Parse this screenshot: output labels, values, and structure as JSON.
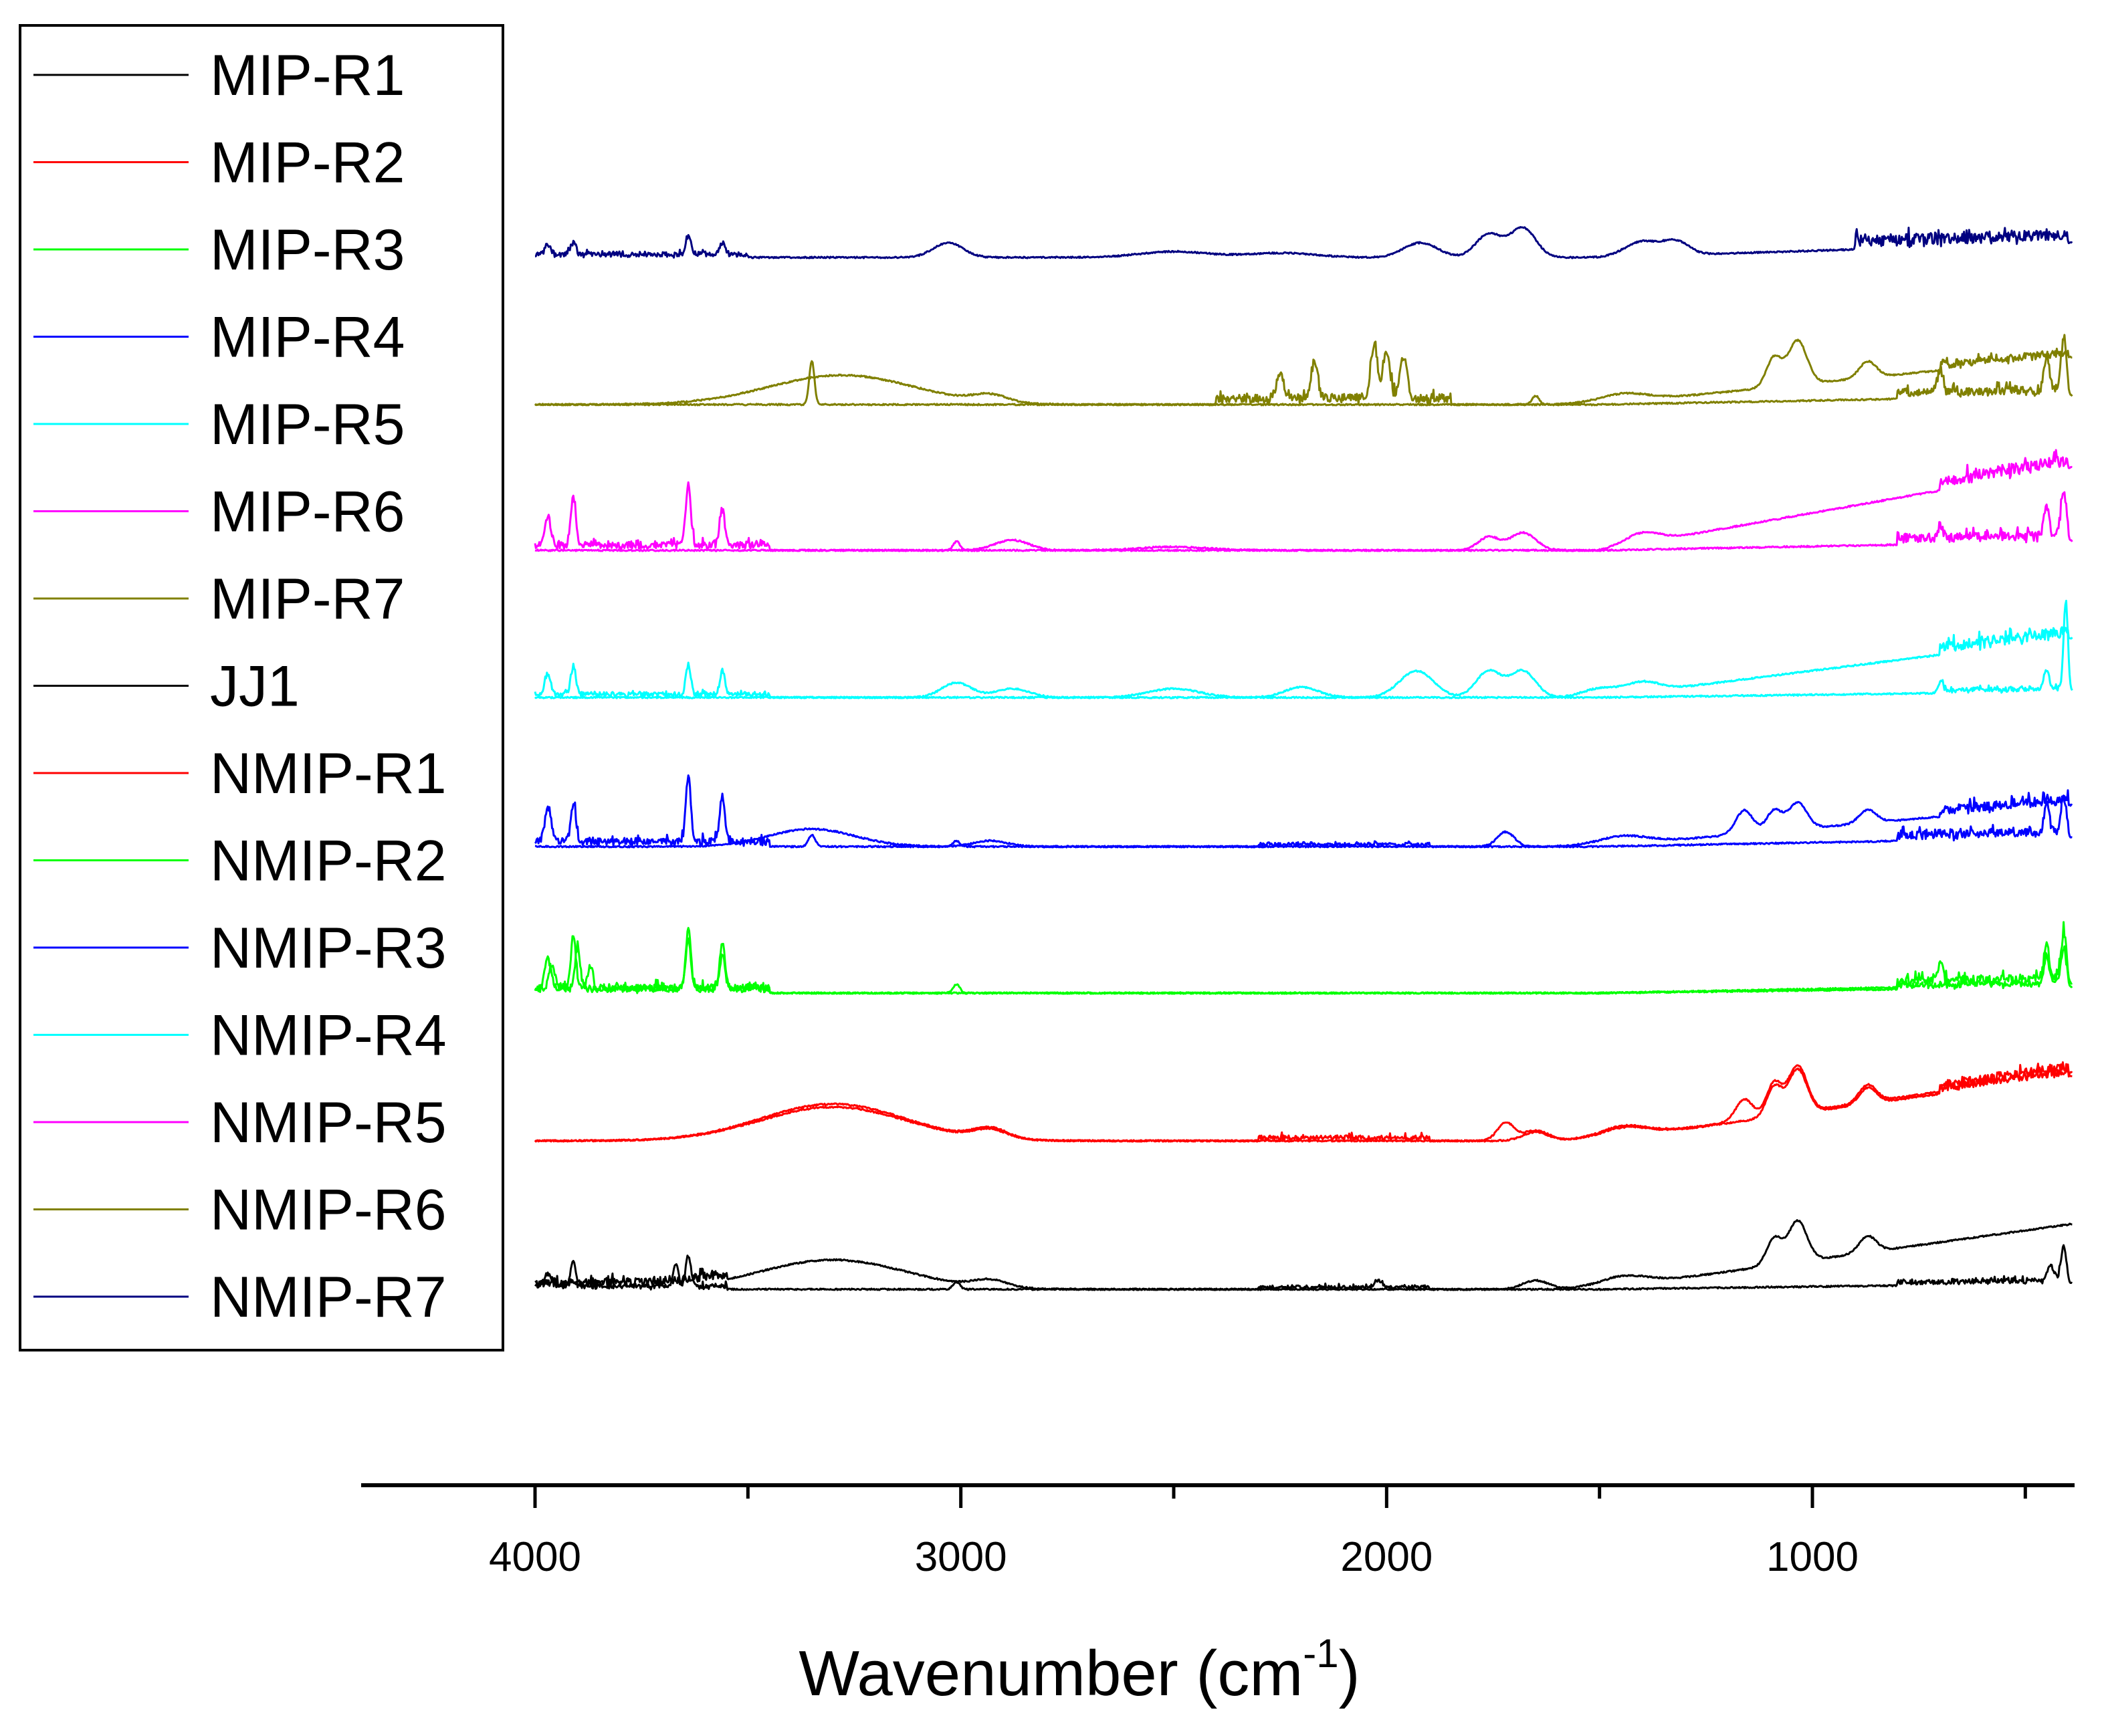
{
  "chart_data": {
    "type": "line",
    "title": "",
    "xlabel": "Wavenumber (cm",
    "xlabel_superscript": "-1",
    "xlabel_suffix": ")",
    "ylabel": "",
    "xlim": [
      4400,
      400
    ],
    "xaxis_reversed": true,
    "x_ticks": [
      4000,
      3000,
      2000,
      1000
    ],
    "x_minor_ticks": [
      3500,
      2500,
      1500,
      500
    ],
    "grid": false,
    "legend_position": "top-left",
    "y_axis_shown": false,
    "note": "FTIR spectra stacked with vertical offsets; curves digitized approximately, intensities in arbitrary units (offset baseline = stack order)",
    "series": [
      {
        "name": "MIP-R1",
        "color": "#000000",
        "stack": 0,
        "style": "lumpy",
        "peaks": [
          [
            3300,
            1.0,
            170
          ],
          [
            2930,
            0.25,
            40
          ],
          [
            1650,
            0.3,
            30
          ],
          [
            1450,
            0.35,
            60
          ],
          [
            1090,
            0.9,
            18
          ],
          [
            1035,
            1.4,
            22
          ],
          [
            870,
            0.55,
            20
          ]
        ],
        "slope": 2.2,
        "noise_regions": [
          [
            4000,
            3550,
            0.6
          ]
        ]
      },
      {
        "name": "JJ1",
        "color": "#000000",
        "stack": 0,
        "style": "sharp",
        "peaks": [
          [
            3970,
            0.45,
            8
          ],
          [
            3910,
            0.9,
            6
          ],
          [
            3670,
            0.8,
            6
          ],
          [
            3640,
            1.0,
            6
          ],
          [
            3010,
            0.25,
            8
          ],
          [
            2020,
            0.25,
            8
          ],
          [
            440,
            0.5,
            8
          ],
          [
            410,
            1.2,
            6
          ]
        ],
        "slope": 0.2,
        "noise_regions": [
          [
            4000,
            3550,
            0.3
          ],
          [
            2300,
            1900,
            0.2
          ],
          [
            800,
            400,
            0.3
          ]
        ]
      },
      {
        "name": "NMIP-R1",
        "color": "#ff0000",
        "stack": 1,
        "style": "lumpy",
        "peaks": [
          [
            3300,
            1.25,
            170
          ],
          [
            2930,
            0.35,
            40
          ],
          [
            1720,
            0.6,
            20
          ],
          [
            1650,
            0.35,
            30
          ],
          [
            1450,
            0.4,
            60
          ],
          [
            1160,
            0.7,
            20
          ],
          [
            1090,
            1.1,
            18
          ],
          [
            1035,
            1.6,
            22
          ],
          [
            870,
            0.6,
            20
          ]
        ],
        "slope": 2.3,
        "noise_regions": [
          [
            2300,
            1900,
            0.3
          ],
          [
            700,
            400,
            0.6
          ]
        ]
      },
      {
        "name": "MIP-R2",
        "color": "#ff0000",
        "stack": 1,
        "style": "lumpy",
        "peaks": [
          [
            3300,
            1.15,
            170
          ],
          [
            2930,
            0.3,
            40
          ],
          [
            1650,
            0.3,
            30
          ],
          [
            1450,
            0.35,
            60
          ],
          [
            1090,
            1.0,
            18
          ],
          [
            1035,
            1.5,
            22
          ],
          [
            870,
            0.55,
            20
          ]
        ],
        "slope": 2.2,
        "noise_regions": [
          [
            700,
            400,
            0.5
          ]
        ]
      },
      {
        "name": "MIP-R3",
        "color": "#00ff00",
        "stack": 2,
        "style": "sharp",
        "peaks": [
          [
            3970,
            1.0,
            7
          ],
          [
            3910,
            1.8,
            6
          ],
          [
            3870,
            0.7,
            6
          ],
          [
            3640,
            2.0,
            6
          ],
          [
            3560,
            1.5,
            6
          ],
          [
            3010,
            0.3,
            8
          ],
          [
            700,
            0.6,
            6
          ],
          [
            450,
            1.2,
            6
          ],
          [
            410,
            1.6,
            6
          ]
        ],
        "slope": 0.3,
        "noise_regions": [
          [
            4000,
            3450,
            0.5
          ],
          [
            800,
            400,
            0.6
          ]
        ]
      },
      {
        "name": "NMIP-R2",
        "color": "#00ff00",
        "stack": 2,
        "style": "sharp",
        "peaks": [
          [
            3960,
            0.8,
            7
          ],
          [
            3900,
            1.4,
            6
          ],
          [
            3640,
            1.7,
            6
          ],
          [
            3560,
            1.2,
            6
          ],
          [
            450,
            0.9,
            6
          ],
          [
            410,
            1.2,
            6
          ]
        ],
        "slope": 0.2,
        "noise_regions": [
          [
            4000,
            3450,
            0.4
          ],
          [
            800,
            400,
            0.4
          ]
        ]
      },
      {
        "name": "NMIP-R3",
        "color": "#0000ff",
        "stack": 3,
        "style": "lumpy",
        "peaks": [
          [
            3350,
            0.6,
            100
          ],
          [
            2930,
            0.2,
            40
          ],
          [
            1720,
            0.5,
            20
          ],
          [
            1450,
            0.3,
            60
          ],
          [
            1160,
            0.8,
            20
          ],
          [
            1090,
            0.7,
            18
          ],
          [
            1035,
            0.9,
            22
          ],
          [
            870,
            0.45,
            20
          ]
        ],
        "slope": 1.4,
        "noise_regions": [
          [
            700,
            400,
            0.6
          ]
        ]
      },
      {
        "name": "MIP-R4",
        "color": "#0000ff",
        "stack": 3,
        "style": "sharp",
        "peaks": [
          [
            3970,
            1.2,
            7
          ],
          [
            3910,
            1.3,
            6
          ],
          [
            3640,
            2.2,
            6
          ],
          [
            3560,
            1.6,
            6
          ],
          [
            3350,
            0.4,
            8
          ],
          [
            3010,
            0.2,
            8
          ],
          [
            450,
            1.0,
            6
          ],
          [
            410,
            1.2,
            6
          ]
        ],
        "slope": 0.3,
        "noise_regions": [
          [
            4000,
            3450,
            0.5
          ],
          [
            2300,
            1900,
            0.2
          ],
          [
            800,
            400,
            0.6
          ]
        ]
      },
      {
        "name": "MIP-R5",
        "color": "#00ffff",
        "stack": 4,
        "style": "lumpy",
        "peaks": [
          [
            3010,
            0.5,
            35
          ],
          [
            2880,
            0.3,
            40
          ],
          [
            2500,
            0.3,
            60
          ],
          [
            2200,
            0.35,
            40
          ],
          [
            1930,
            0.9,
            40
          ],
          [
            1760,
            0.9,
            30
          ],
          [
            1680,
            0.9,
            30
          ],
          [
            1500,
            0.3,
            40
          ],
          [
            1400,
            0.35,
            40
          ]
        ],
        "slope": 2.0,
        "noise_regions": [
          [
            700,
            400,
            0.7
          ]
        ]
      },
      {
        "name": "NMIP-R4",
        "color": "#00ffff",
        "stack": 4,
        "style": "sharp",
        "peaks": [
          [
            3970,
            0.7,
            7
          ],
          [
            3910,
            0.9,
            6
          ],
          [
            3640,
            1.0,
            6
          ],
          [
            3560,
            0.8,
            6
          ],
          [
            700,
            0.3,
            6
          ],
          [
            450,
            0.6,
            6
          ],
          [
            405,
            3.0,
            5
          ]
        ],
        "slope": 0.2,
        "noise_regions": [
          [
            4000,
            3450,
            0.3
          ],
          [
            700,
            400,
            0.3
          ]
        ]
      },
      {
        "name": "MIP-R6",
        "color": "#ff00ff",
        "stack": 5,
        "style": "lumpy",
        "peaks": [
          [
            2880,
            0.35,
            40
          ],
          [
            2500,
            0.12,
            80
          ],
          [
            1760,
            0.45,
            25
          ],
          [
            1680,
            0.6,
            30
          ],
          [
            1400,
            0.35,
            40
          ]
        ],
        "slope": 2.8,
        "noise_regions": [
          [
            700,
            400,
            0.8
          ]
        ]
      },
      {
        "name": "NMIP-R5",
        "color": "#ff00ff",
        "stack": 5,
        "style": "sharp",
        "peaks": [
          [
            3970,
            1.0,
            7
          ],
          [
            3910,
            1.6,
            6
          ],
          [
            3640,
            2.0,
            6
          ],
          [
            3560,
            1.2,
            6
          ],
          [
            3010,
            0.3,
            8
          ],
          [
            700,
            0.4,
            6
          ],
          [
            450,
            1.0,
            6
          ],
          [
            410,
            1.6,
            6
          ]
        ],
        "slope": 0.3,
        "noise_regions": [
          [
            4000,
            3450,
            0.5
          ],
          [
            800,
            400,
            0.6
          ]
        ]
      },
      {
        "name": "MIP-R7",
        "color": "#808000",
        "stack": 6,
        "style": "lumpy",
        "peaks": [
          [
            3280,
            1.0,
            170
          ],
          [
            2930,
            0.25,
            40
          ],
          [
            1450,
            0.3,
            60
          ],
          [
            1090,
            1.0,
            18
          ],
          [
            1035,
            1.5,
            22
          ],
          [
            870,
            0.55,
            20
          ]
        ],
        "slope": 1.6,
        "noise_regions": [
          [
            700,
            400,
            0.5
          ]
        ]
      },
      {
        "name": "NMIP-R6",
        "color": "#808000",
        "stack": 6,
        "style": "sharp",
        "peaks": [
          [
            3350,
            1.5,
            6
          ],
          [
            2250,
            0.8,
            8
          ],
          [
            2170,
            1.2,
            8
          ],
          [
            2030,
            1.8,
            8
          ],
          [
            2000,
            1.6,
            8
          ],
          [
            1960,
            1.4,
            8
          ],
          [
            1650,
            0.3,
            8
          ],
          [
            700,
            0.8,
            6
          ],
          [
            450,
            1.2,
            6
          ],
          [
            410,
            1.8,
            6
          ]
        ],
        "slope": 0.3,
        "noise_regions": [
          [
            2400,
            1850,
            0.6
          ],
          [
            800,
            400,
            0.6
          ]
        ]
      },
      {
        "name": "NMIP-R7",
        "color": "#000080",
        "stack": 7,
        "style": "lumpy",
        "peaks": [
          [
            3970,
            0.3,
            7
          ],
          [
            3910,
            0.4,
            6
          ],
          [
            3640,
            0.6,
            6
          ],
          [
            3560,
            0.4,
            6
          ],
          [
            3030,
            0.5,
            35
          ],
          [
            2500,
            0.2,
            80
          ],
          [
            2250,
            0.15,
            80
          ],
          [
            1920,
            0.5,
            40
          ],
          [
            1760,
            0.8,
            30
          ],
          [
            1680,
            1.0,
            30
          ],
          [
            1400,
            0.5,
            40
          ],
          [
            1320,
            0.45,
            30
          ]
        ],
        "slope": 0.5,
        "noise_regions": [
          [
            4000,
            3500,
            0.3
          ],
          [
            900,
            400,
            0.8
          ]
        ]
      }
    ]
  }
}
